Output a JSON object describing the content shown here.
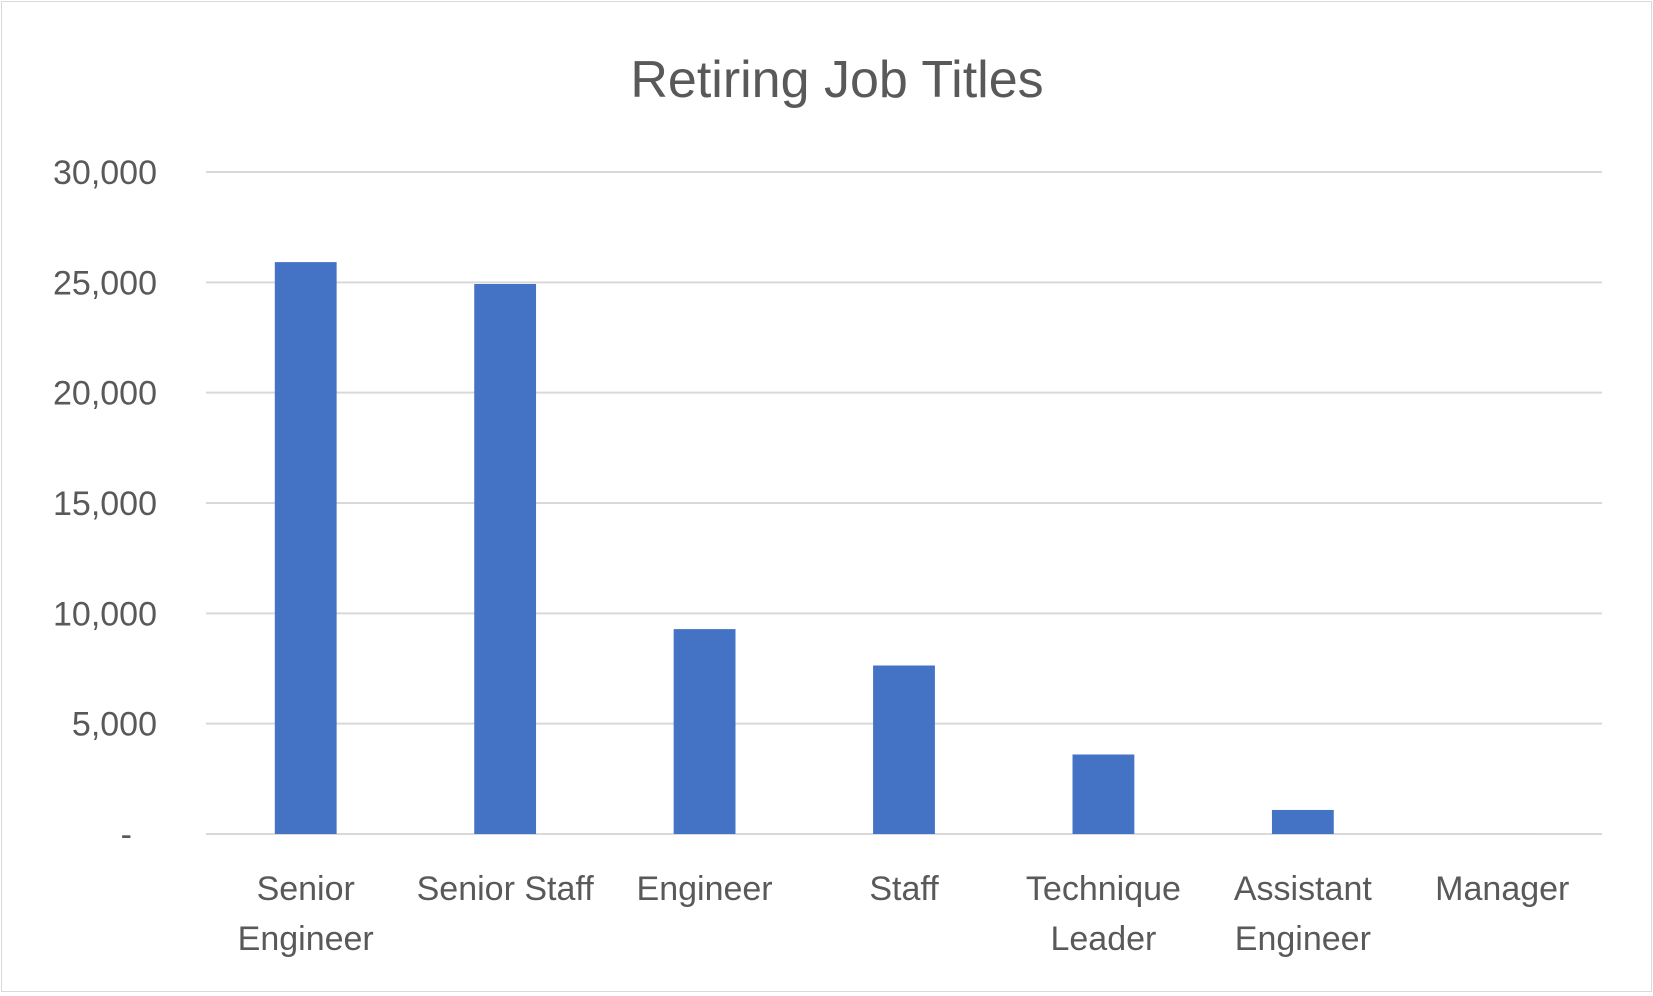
{
  "chart_data": {
    "type": "bar",
    "title": "Retiring Job Titles",
    "xlabel": "",
    "ylabel": "",
    "categories": [
      [
        "Senior",
        "Engineer"
      ],
      [
        "Senior Staff"
      ],
      [
        "Engineer"
      ],
      [
        "Staff"
      ],
      [
        "Technique",
        "Leader"
      ],
      [
        "Assistant",
        "Engineer"
      ],
      [
        "Manager"
      ]
    ],
    "values": [
      25916,
      24926,
      9285,
      7636,
      3603,
      1090,
      2
    ],
    "ylim": [
      0,
      30000
    ],
    "yticks": [
      0,
      5000,
      10000,
      15000,
      20000,
      25000,
      30000
    ],
    "ytick_labels": [
      "-",
      "5,000",
      "10,000",
      "15,000",
      "20,000",
      "25,000",
      "30,000"
    ],
    "grid": true,
    "legend": "none",
    "colors": {
      "bar": "#4472c4",
      "gridline": "#d9d9d9",
      "text": "#595959",
      "border": "#d9d9d9"
    }
  }
}
